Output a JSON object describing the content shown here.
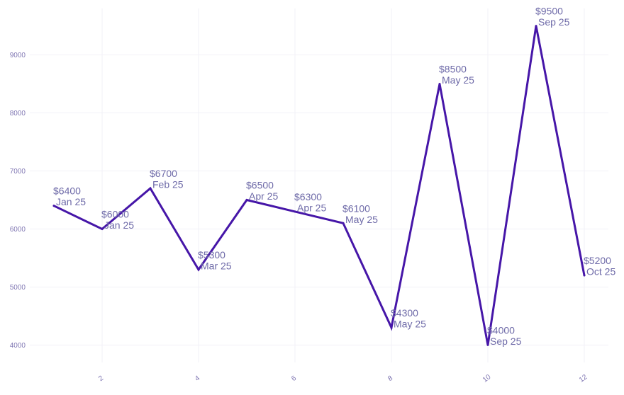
{
  "chart_data": {
    "type": "line",
    "title": "",
    "xlabel": "",
    "ylabel": "",
    "x": [
      1,
      2,
      3,
      4,
      5,
      6,
      7,
      8,
      9,
      10,
      11,
      12
    ],
    "series": [
      {
        "values": [
          6400,
          6000,
          6700,
          5300,
          6500,
          6300,
          6100,
          4300,
          8500,
          4000,
          9500,
          5200
        ],
        "labels": [
          [
            "$6400",
            "Jan 25"
          ],
          [
            "$6000",
            "Jan 25"
          ],
          [
            "$6700",
            "Feb 25"
          ],
          [
            "$5300",
            "Mar 25"
          ],
          [
            "$6500",
            "Apr 25"
          ],
          [
            "$6300",
            "Apr 25"
          ],
          [
            "$6100",
            "May 25"
          ],
          [
            "$4300",
            "May 25"
          ],
          [
            "$8500",
            "May 25"
          ],
          [
            "$4000",
            "Sep 25"
          ],
          [
            "$9500",
            "Sep 25"
          ],
          [
            "$5200",
            "Oct 25"
          ]
        ]
      }
    ],
    "x_ticks": [
      "2",
      "4",
      "6",
      "8",
      "10",
      "12"
    ],
    "y_ticks": [
      "4000",
      "5000",
      "6000",
      "7000",
      "8000",
      "9000"
    ],
    "xlim": [
      0.5,
      12.5
    ],
    "ylim": [
      3700,
      9800
    ],
    "grid": true,
    "legend": "none",
    "colors": {
      "line": "#4616a8",
      "label": "#6e6aa8",
      "tick": "#8077b3",
      "grid": "#f2f1f7"
    }
  }
}
